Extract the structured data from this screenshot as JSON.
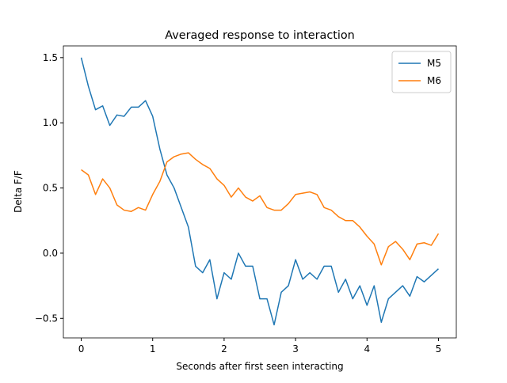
{
  "chart_data": {
    "type": "line",
    "title": "Averaged response to interaction",
    "x_label": "Seconds after first seen interacting",
    "y_label": "Delta F/F",
    "x": [
      0,
      0.1,
      0.2,
      0.3,
      0.4,
      0.5,
      0.6,
      0.7,
      0.8,
      0.9,
      1,
      1.1,
      1.2,
      1.3,
      1.4,
      1.5,
      1.6,
      1.7,
      1.8,
      1.9,
      2,
      2.1,
      2.2,
      2.3,
      2.4,
      2.5,
      2.6,
      2.7,
      2.8,
      2.9,
      3,
      3.1,
      3.2,
      3.3,
      3.4,
      3.5,
      3.6,
      3.7,
      3.8,
      3.9,
      4,
      4.1,
      4.2,
      4.3,
      4.4,
      4.5,
      4.6,
      4.7,
      4.8,
      4.9,
      5
    ],
    "series": [
      {
        "name": "M5",
        "color": "#1f77b4",
        "values": [
          1.5,
          1.28,
          1.1,
          1.13,
          0.98,
          1.06,
          1.05,
          1.12,
          1.12,
          1.17,
          1.05,
          0.8,
          0.6,
          0.5,
          0.35,
          0.2,
          -0.1,
          -0.15,
          -0.05,
          -0.35,
          -0.15,
          -0.2,
          0.0,
          -0.1,
          -0.1,
          -0.35,
          -0.35,
          -0.55,
          -0.3,
          -0.25,
          -0.05,
          -0.2,
          -0.15,
          -0.2,
          -0.1,
          -0.1,
          -0.3,
          -0.2,
          -0.35,
          -0.25,
          -0.4,
          -0.25,
          -0.53,
          -0.35,
          -0.3,
          -0.25,
          -0.33,
          -0.18,
          -0.22,
          -0.17,
          -0.12
        ]
      },
      {
        "name": "M6",
        "color": "#ff7f0e",
        "values": [
          0.64,
          0.6,
          0.45,
          0.57,
          0.5,
          0.37,
          0.33,
          0.32,
          0.35,
          0.33,
          0.45,
          0.55,
          0.7,
          0.74,
          0.76,
          0.77,
          0.72,
          0.68,
          0.65,
          0.57,
          0.52,
          0.43,
          0.5,
          0.43,
          0.4,
          0.44,
          0.35,
          0.33,
          0.33,
          0.38,
          0.45,
          0.46,
          0.47,
          0.45,
          0.35,
          0.33,
          0.28,
          0.25,
          0.25,
          0.2,
          0.13,
          0.07,
          -0.09,
          0.05,
          0.09,
          0.03,
          -0.05,
          0.07,
          0.08,
          0.06,
          0.15
        ]
      }
    ],
    "xlim": [
      -0.25,
      5.25
    ],
    "ylim": [
      -0.65,
      1.59
    ],
    "xticks": [
      0,
      1,
      2,
      3,
      4,
      5
    ],
    "yticks": [
      {
        "value": -0.5,
        "label": "−0.5"
      },
      {
        "value": 0,
        "label": "0.0"
      },
      0.5,
      {
        "value": 1,
        "label": "1.0"
      },
      1.5
    ],
    "legend": "upper right"
  }
}
